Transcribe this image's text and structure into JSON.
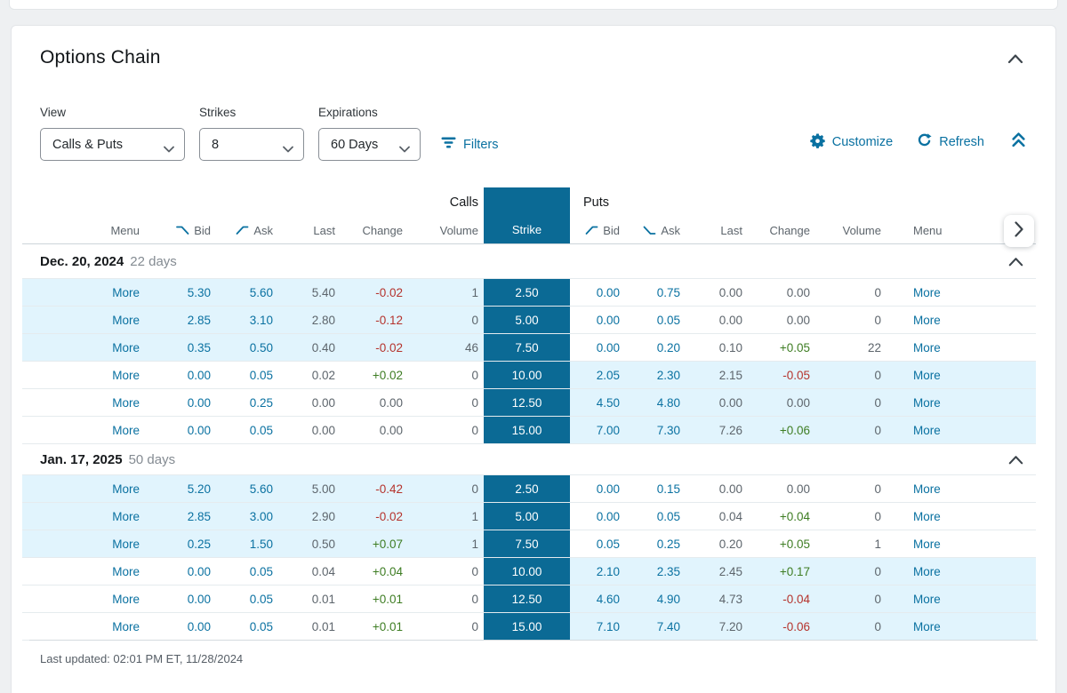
{
  "page": {
    "title": "Options Chain"
  },
  "toolbar": {
    "view_label": "View",
    "view_value": "Calls & Puts",
    "strikes_label": "Strikes",
    "strikes_value": "8",
    "expirations_label": "Expirations",
    "expirations_value": "60 Days",
    "filters_label": "Filters",
    "customize_label": "Customize",
    "refresh_label": "Refresh"
  },
  "chain": {
    "calls_label": "Calls",
    "puts_label": "Puts",
    "strike_header": "Strike",
    "call_headers": {
      "menu": "Menu",
      "bid": "Bid",
      "ask": "Ask",
      "last": "Last",
      "change": "Change",
      "volume": "Volume"
    },
    "put_headers": {
      "bid": "Bid",
      "ask": "Ask",
      "last": "Last",
      "change": "Change",
      "volume": "Volume",
      "menu": "Menu"
    },
    "more_label": "More",
    "groups": [
      {
        "date": "Dec. 20, 2024",
        "days": "22 days",
        "rows": [
          {
            "strike": "2.50",
            "call": {
              "bid": "5.30",
              "ask": "5.60",
              "last": "5.40",
              "change": "-0.02",
              "volume": "1",
              "itm": true
            },
            "put": {
              "bid": "0.00",
              "ask": "0.75",
              "last": "0.00",
              "change": "0.00",
              "volume": "0",
              "itm": false
            }
          },
          {
            "strike": "5.00",
            "call": {
              "bid": "2.85",
              "ask": "3.10",
              "last": "2.80",
              "change": "-0.12",
              "volume": "0",
              "itm": true
            },
            "put": {
              "bid": "0.00",
              "ask": "0.05",
              "last": "0.00",
              "change": "0.00",
              "volume": "0",
              "itm": false
            }
          },
          {
            "strike": "7.50",
            "call": {
              "bid": "0.35",
              "ask": "0.50",
              "last": "0.40",
              "change": "-0.02",
              "volume": "46",
              "itm": true
            },
            "put": {
              "bid": "0.00",
              "ask": "0.20",
              "last": "0.10",
              "change": "+0.05",
              "volume": "22",
              "itm": false
            }
          },
          {
            "strike": "10.00",
            "call": {
              "bid": "0.00",
              "ask": "0.05",
              "last": "0.02",
              "change": "+0.02",
              "volume": "0",
              "itm": false
            },
            "put": {
              "bid": "2.05",
              "ask": "2.30",
              "last": "2.15",
              "change": "-0.05",
              "volume": "0",
              "itm": true
            }
          },
          {
            "strike": "12.50",
            "call": {
              "bid": "0.00",
              "ask": "0.25",
              "last": "0.00",
              "change": "0.00",
              "volume": "0",
              "itm": false
            },
            "put": {
              "bid": "4.50",
              "ask": "4.80",
              "last": "0.00",
              "change": "0.00",
              "volume": "0",
              "itm": true
            }
          },
          {
            "strike": "15.00",
            "call": {
              "bid": "0.00",
              "ask": "0.05",
              "last": "0.00",
              "change": "0.00",
              "volume": "0",
              "itm": false
            },
            "put": {
              "bid": "7.00",
              "ask": "7.30",
              "last": "7.26",
              "change": "+0.06",
              "volume": "0",
              "itm": true
            }
          }
        ]
      },
      {
        "date": "Jan. 17, 2025",
        "days": "50 days",
        "rows": [
          {
            "strike": "2.50",
            "call": {
              "bid": "5.20",
              "ask": "5.60",
              "last": "5.00",
              "change": "-0.42",
              "volume": "0",
              "itm": true
            },
            "put": {
              "bid": "0.00",
              "ask": "0.15",
              "last": "0.00",
              "change": "0.00",
              "volume": "0",
              "itm": false
            }
          },
          {
            "strike": "5.00",
            "call": {
              "bid": "2.85",
              "ask": "3.00",
              "last": "2.90",
              "change": "-0.02",
              "volume": "1",
              "itm": true
            },
            "put": {
              "bid": "0.00",
              "ask": "0.05",
              "last": "0.04",
              "change": "+0.04",
              "volume": "0",
              "itm": false
            }
          },
          {
            "strike": "7.50",
            "call": {
              "bid": "0.25",
              "ask": "1.50",
              "last": "0.50",
              "change": "+0.07",
              "volume": "1",
              "itm": true
            },
            "put": {
              "bid": "0.05",
              "ask": "0.25",
              "last": "0.20",
              "change": "+0.05",
              "volume": "1",
              "itm": false
            }
          },
          {
            "strike": "10.00",
            "call": {
              "bid": "0.00",
              "ask": "0.05",
              "last": "0.04",
              "change": "+0.04",
              "volume": "0",
              "itm": false
            },
            "put": {
              "bid": "2.10",
              "ask": "2.35",
              "last": "2.45",
              "change": "+0.17",
              "volume": "0",
              "itm": true
            }
          },
          {
            "strike": "12.50",
            "call": {
              "bid": "0.00",
              "ask": "0.05",
              "last": "0.01",
              "change": "+0.01",
              "volume": "0",
              "itm": false
            },
            "put": {
              "bid": "4.60",
              "ask": "4.90",
              "last": "4.73",
              "change": "-0.04",
              "volume": "0",
              "itm": true
            }
          },
          {
            "strike": "15.00",
            "call": {
              "bid": "0.00",
              "ask": "0.05",
              "last": "0.01",
              "change": "+0.01",
              "volume": "0",
              "itm": false
            },
            "put": {
              "bid": "7.10",
              "ask": "7.40",
              "last": "7.20",
              "change": "-0.06",
              "volume": "0",
              "itm": true
            }
          }
        ]
      }
    ]
  },
  "footer": {
    "last_updated": "Last updated: 02:01 PM ET, 11/28/2024"
  },
  "icons": {
    "card_collapse": "chevron-up-icon",
    "filters": "filter-icon",
    "customize": "gear-icon",
    "refresh": "refresh-icon",
    "collapse_all": "double-chevron-up-icon",
    "scroll_right": "chevron-right-icon",
    "calls_bid": "trend-down-icon",
    "calls_ask": "trend-up-icon",
    "puts_bid": "trend-up-icon",
    "puts_ask": "trend-down-icon",
    "dropdown": "chevron-down-icon"
  },
  "colors": {
    "accent": "#0a71a1",
    "strike_bg": "#0b6a95",
    "row_highlight": "#e1f4fd",
    "positive": "#3e7d23",
    "negative": "#b5332d"
  }
}
